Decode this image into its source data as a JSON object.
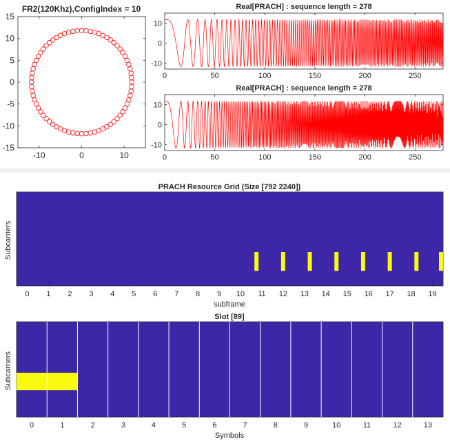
{
  "chart_data": [
    {
      "id": "constellation",
      "type": "scatter",
      "title": "FR2(120Khz),ConfigIndex = 10",
      "xlabel": "",
      "ylabel": "",
      "xlim": [
        -15,
        15
      ],
      "ylim": [
        -15,
        15
      ],
      "xticks": [
        -10,
        0,
        10
      ],
      "yticks": [
        -15,
        -10,
        -5,
        0,
        5,
        10,
        15
      ],
      "marker": "circle",
      "color": "#ff0000",
      "radius": 11.8,
      "n_points": 72
    },
    {
      "id": "real-prach-1",
      "type": "line",
      "title": "Real[PRACH] : sequence length = 278",
      "xlabel": "",
      "ylabel": "",
      "xlim": [
        0,
        278
      ],
      "ylim": [
        -13,
        15
      ],
      "xticks": [
        0,
        50,
        100,
        150,
        200,
        250
      ],
      "yticks": [
        -10,
        0,
        10
      ],
      "color": "#ff0000",
      "amplitude": 11.8,
      "root": 1
    },
    {
      "id": "real-prach-2",
      "type": "line",
      "title": "Real[PRACH] : sequence length = 278",
      "xlabel": "",
      "ylabel": "",
      "xlim": [
        0,
        278
      ],
      "ylim": [
        -13,
        15
      ],
      "xticks": [
        0,
        50,
        100,
        150,
        200,
        250
      ],
      "yticks": [
        -10,
        0,
        10
      ],
      "color": "#ff0000",
      "amplitude": 11.8,
      "root": 2
    },
    {
      "id": "resource-grid",
      "type": "heatmap",
      "title": "PRACH Resource Grid (Size [792 2240])",
      "xlabel": "subframe",
      "ylabel": "Subcarriers",
      "xlim": [
        0,
        19.5
      ],
      "xticks": [
        0,
        1,
        2,
        3,
        4,
        5,
        6,
        7,
        8,
        9,
        10,
        11,
        12,
        13,
        14,
        15,
        16,
        17,
        18,
        19
      ],
      "background_color": "#3d26a8",
      "highlight_color": "#f9fb0e",
      "occupied_subframes": [
        10.75,
        12,
        13.25,
        14.5,
        15.75,
        17,
        18.25,
        19.5
      ],
      "occupied_band": [
        0.16,
        0.36
      ]
    },
    {
      "id": "slot",
      "type": "heatmap",
      "title": "Slot [89]",
      "xlabel": "Symbols",
      "ylabel": "Subcarriers",
      "xlim": [
        -0.5,
        13.5
      ],
      "xticks": [
        0,
        1,
        2,
        3,
        4,
        5,
        6,
        7,
        8,
        9,
        10,
        11,
        12,
        13
      ],
      "background_color": "#3d26a8",
      "highlight_color": "#f9fb0e",
      "highlight_symbols": [
        0,
        1
      ],
      "highlight_band": [
        0.18,
        0.32
      ]
    }
  ]
}
